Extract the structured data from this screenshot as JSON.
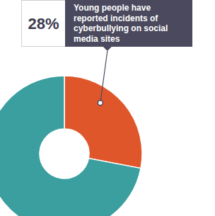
{
  "chart_data": {
    "type": "pie",
    "values": [
      28,
      72
    ],
    "value_labels": [
      "28%",
      null
    ],
    "colors": [
      "#e0562b",
      "#3b9e9f"
    ],
    "annotation": "Young people have reported incidents of cyberbullying on social media sites"
  }
}
